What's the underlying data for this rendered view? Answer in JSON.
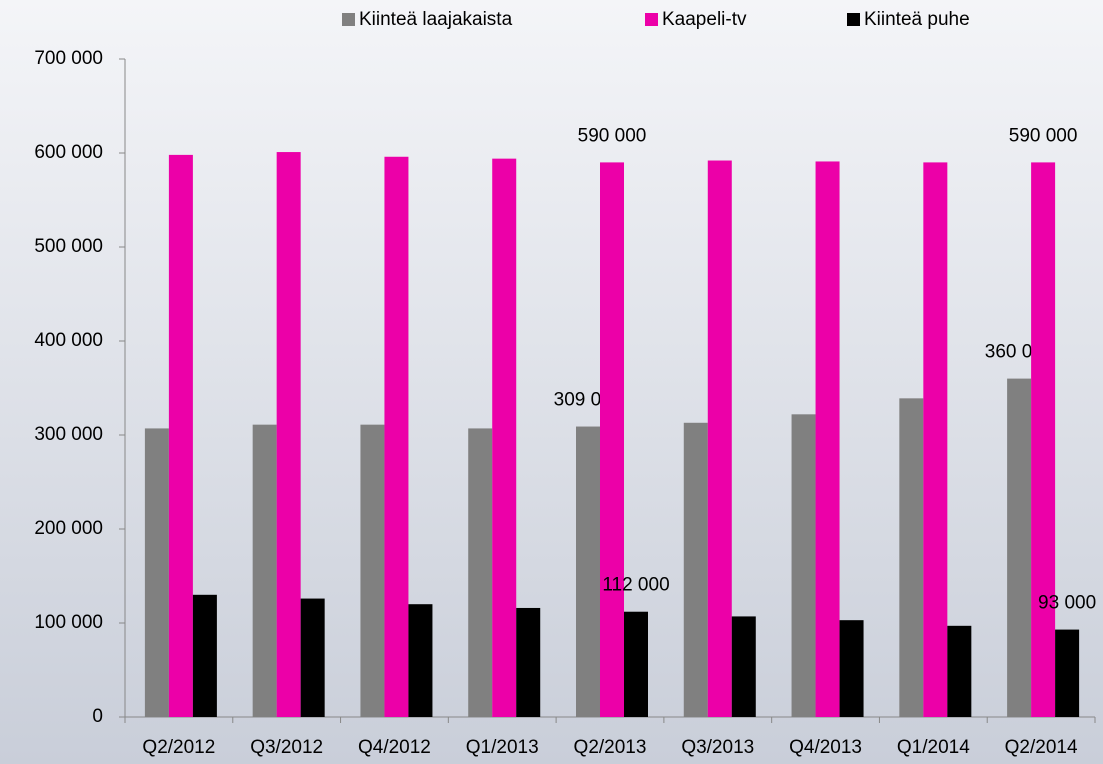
{
  "chart_data": {
    "type": "bar",
    "categories": [
      "Q2/2012",
      "Q3/2012",
      "Q4/2012",
      "Q1/2013",
      "Q2/2013",
      "Q3/2013",
      "Q4/2013",
      "Q1/2014",
      "Q2/2014"
    ],
    "series": [
      {
        "name": "Kiinteä laajakaista",
        "color": "#808080",
        "values": [
          307000,
          311000,
          311000,
          307000,
          309000,
          313000,
          322000,
          339000,
          360000
        ],
        "value_labels": [
          null,
          null,
          null,
          null,
          "309 000",
          null,
          null,
          null,
          "360 000"
        ]
      },
      {
        "name": "Kaapeli-tv",
        "color": "#ec00a8",
        "values": [
          598000,
          601000,
          596000,
          594000,
          590000,
          592000,
          591000,
          590000,
          590000
        ],
        "value_labels": [
          null,
          null,
          null,
          null,
          "590 000",
          null,
          null,
          null,
          "590 000"
        ]
      },
      {
        "name": "Kiinteä puhe",
        "color": "#000000",
        "values": [
          130000,
          126000,
          120000,
          116000,
          112000,
          107000,
          103000,
          97000,
          93000
        ],
        "value_labels": [
          null,
          null,
          null,
          null,
          "112 000",
          null,
          null,
          null,
          "93 000"
        ]
      }
    ],
    "ylim": [
      0,
      700000
    ],
    "yticks": [
      0,
      {
        "value": 100000,
        "label": "100 000"
      },
      {
        "value": 200000,
        "label": "200 000"
      },
      {
        "value": 300000,
        "label": "300 000"
      },
      {
        "value": 400000,
        "label": "400 000"
      },
      {
        "value": 500000,
        "label": "500 000"
      },
      {
        "value": 600000,
        "label": "600 000"
      },
      {
        "value": 700000,
        "label": "700 000"
      }
    ],
    "legend": "top",
    "grid": false
  }
}
